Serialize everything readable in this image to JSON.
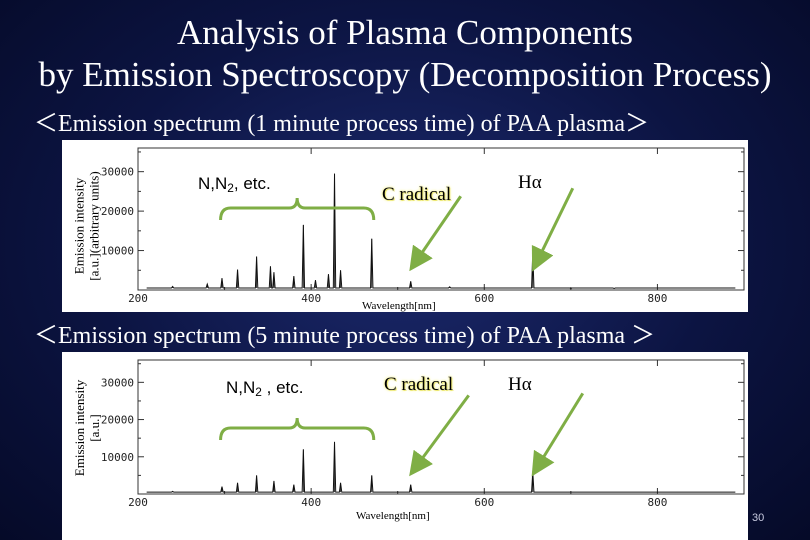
{
  "slide": {
    "title_line1": "Analysis of Plasma Components",
    "title_line2": "by Emission Spectroscopy (Decomposition Process)",
    "page_number": "30"
  },
  "panel1": {
    "heading": "＜Emission spectrum (1 minute process time) of PAA plasma＞",
    "ylabel_line1": "Emission intensity",
    "ylabel_line2": "[a.u.](arbitrary units)",
    "xlabel": "Wavelength[nm]",
    "annotation_n_prefix": "N,N",
    "annotation_n_sub": "2",
    "annotation_n_suffix": ", etc.",
    "annotation_c": "C radical",
    "annotation_h": "Hα"
  },
  "panel2": {
    "heading": "＜Emission spectrum (5 minute process time) of PAA plasma ＞",
    "ylabel_line1": "Emission intensity",
    "ylabel_line2": "[a.u.]",
    "xlabel": "Wavelength[nm]",
    "annotation_n_prefix": "N,N",
    "annotation_n_sub": "2",
    "annotation_n_suffix": " , etc.",
    "annotation_c": "C radical",
    "annotation_h": "Hα"
  },
  "colors": {
    "arrow": "#7fae45",
    "brace": "#7fae45",
    "spectrum": "#111111",
    "c_radical_highlight": "#f4f18a"
  },
  "chart_data": [
    {
      "type": "line",
      "xlabel": "Wavelength[nm]",
      "ylabel": "Emission intensity [a.u.](arbitrary units)",
      "xlim": [
        200,
        900
      ],
      "ylim": [
        0,
        36000
      ],
      "x_ticks": [
        "200",
        "400",
        "600",
        "800"
      ],
      "y_ticks": [
        "10000",
        "20000",
        "30000"
      ],
      "grid": false,
      "baseline": 500,
      "peaks": [
        {
          "x": 240,
          "y": 900
        },
        {
          "x": 280,
          "y": 1500
        },
        {
          "x": 297,
          "y": 3000
        },
        {
          "x": 315,
          "y": 5200
        },
        {
          "x": 337,
          "y": 8500
        },
        {
          "x": 353,
          "y": 6000
        },
        {
          "x": 357,
          "y": 4500
        },
        {
          "x": 380,
          "y": 3500
        },
        {
          "x": 391,
          "y": 16500
        },
        {
          "x": 405,
          "y": 2500
        },
        {
          "x": 420,
          "y": 4000
        },
        {
          "x": 427,
          "y": 29500
        },
        {
          "x": 434,
          "y": 5000
        },
        {
          "x": 470,
          "y": 13000
        },
        {
          "x": 515,
          "y": 2200
        },
        {
          "x": 560,
          "y": 800
        },
        {
          "x": 656,
          "y": 9500
        },
        {
          "x": 700,
          "y": 400
        },
        {
          "x": 750,
          "y": 400
        }
      ],
      "annotations": [
        {
          "text": "N,N2, etc.",
          "x_range": [
            300,
            470
          ]
        },
        {
          "text": "C radical",
          "x": 515
        },
        {
          "text": "Hα",
          "x": 656
        }
      ]
    },
    {
      "type": "line",
      "xlabel": "Wavelength[nm]",
      "ylabel": "Emission intensity [a.u.]",
      "xlim": [
        200,
        900
      ],
      "ylim": [
        0,
        36000
      ],
      "x_ticks": [
        "200",
        "400",
        "600",
        "800"
      ],
      "y_ticks": [
        "10000",
        "20000",
        "30000"
      ],
      "grid": false,
      "baseline": 500,
      "peaks": [
        {
          "x": 240,
          "y": 700
        },
        {
          "x": 297,
          "y": 2000
        },
        {
          "x": 315,
          "y": 3000
        },
        {
          "x": 337,
          "y": 5000
        },
        {
          "x": 357,
          "y": 3500
        },
        {
          "x": 380,
          "y": 2500
        },
        {
          "x": 391,
          "y": 12000
        },
        {
          "x": 427,
          "y": 14000
        },
        {
          "x": 434,
          "y": 3000
        },
        {
          "x": 470,
          "y": 5000
        },
        {
          "x": 515,
          "y": 2500
        },
        {
          "x": 656,
          "y": 6000
        }
      ],
      "annotations": [
        {
          "text": "N,N2 , etc.",
          "x_range": [
            300,
            470
          ]
        },
        {
          "text": "C radical",
          "x": 515
        },
        {
          "text": "Hα",
          "x": 656
        }
      ]
    }
  ]
}
